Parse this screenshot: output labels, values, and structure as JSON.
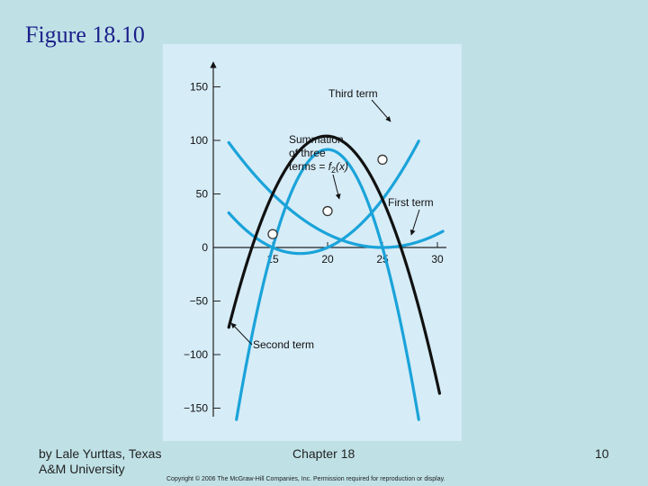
{
  "slide": {
    "title": "Figure 18.10",
    "footer_left": "by Lale Yurttas, Texas A&M University",
    "footer_center": "Chapter 18",
    "page_number": "10",
    "copyright": "Copyright © 2006 The McGraw-Hill Companies, Inc. Permission required for reproduction or display."
  },
  "chart_data": {
    "type": "line",
    "title": "",
    "xlabel": "",
    "ylabel": "",
    "xlim": [
      11,
      33
    ],
    "ylim": [
      -160,
      170
    ],
    "x_ticks": [
      "15",
      "20",
      "25",
      "30"
    ],
    "y_ticks": [
      "150",
      "100",
      "50",
      "0",
      "−50",
      "−100",
      "−150"
    ],
    "y_tick_values": [
      150,
      100,
      50,
      0,
      -50,
      -100,
      -150
    ],
    "x_tick_values": [
      15,
      20,
      25,
      30
    ],
    "colors": {
      "terms": "#1aa3d9",
      "sum": "#111111",
      "axis": "#222222",
      "markers_fill": "#ffffff"
    },
    "series": [
      {
        "key": "first",
        "label": "First term",
        "fn": "0.5*(x-25)^2",
        "x_range": [
          11,
          30.5
        ]
      },
      {
        "key": "second",
        "label": "Second term",
        "fn": "-3.66*(x-15)*(x-25)",
        "x_range": [
          11.5,
          30.5
        ]
      },
      {
        "key": "third",
        "label": "Third term",
        "fn": "0.9*(x-15)*(x-20)",
        "x_range": [
          11,
          28.3
        ]
      },
      {
        "key": "sum",
        "label": "Summation of three terms",
        "fn": "first+second+third",
        "x_range": [
          11,
          30.2
        ]
      }
    ],
    "points": [
      {
        "x": 15,
        "y": 12.5
      },
      {
        "x": 20,
        "y": 34
      },
      {
        "x": 25,
        "y": 82
      }
    ],
    "annotations": {
      "third_term": "Third term",
      "summation_line1": "Summation",
      "summation_line2": "of three",
      "summation_line3": "terms = ",
      "summation_func": "f",
      "summation_sub": "2",
      "summation_arg": "(x)",
      "first_term": "First term",
      "second_term": "Second term"
    }
  }
}
